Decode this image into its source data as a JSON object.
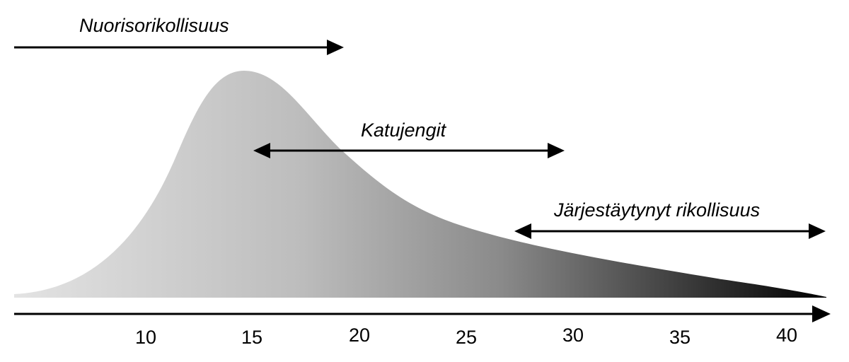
{
  "colors": {
    "curve_light": "#e3e3e3",
    "curve_dark": "#000000",
    "arrow": "#000000",
    "background": "#ffffff"
  },
  "axis": {
    "x_ticks": [
      "10",
      "15",
      "20",
      "25",
      "30",
      "35",
      "40"
    ]
  },
  "ranges": [
    {
      "label": "Nuorisorikollisuus",
      "arrow": "right"
    },
    {
      "label": "Katujengit",
      "arrow": "both"
    },
    {
      "label": "Järjestäytynyt rikollisuus",
      "arrow": "both"
    }
  ]
}
